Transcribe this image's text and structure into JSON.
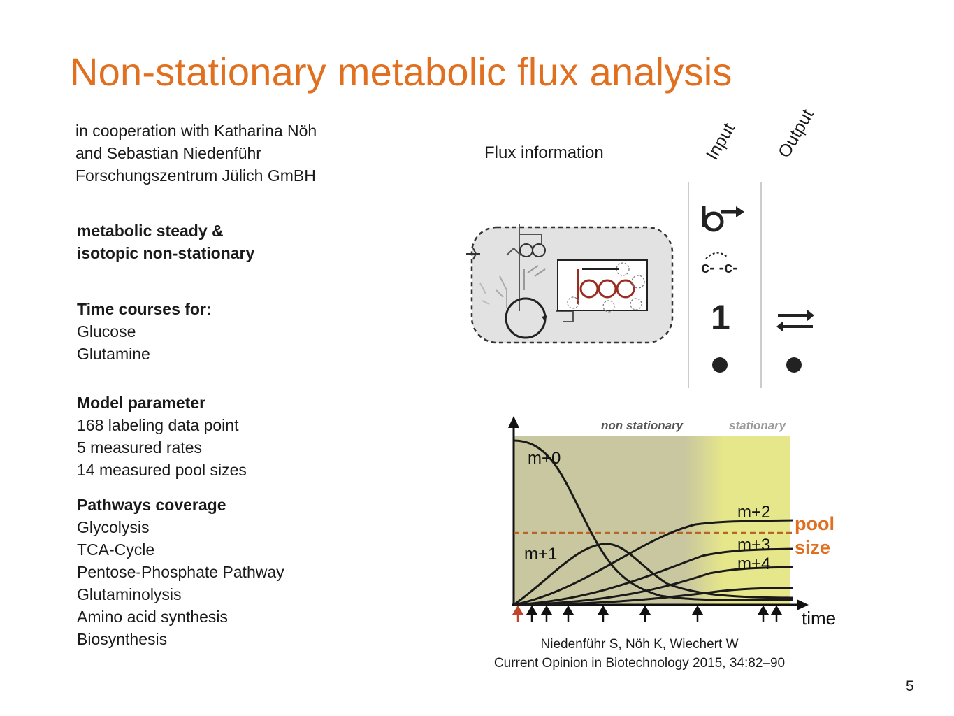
{
  "slide": {
    "title": "Non-stationary metabolic flux analysis",
    "page_number": "5"
  },
  "cooperation": {
    "lines": [
      "in cooperation with Katharina Nöh",
      "and Sebastian Niedenführ",
      "Forschungszentrum Jülich GmBH"
    ]
  },
  "steady_state": {
    "lines": [
      "metabolic steady &",
      "isotopic non-stationary"
    ]
  },
  "time_courses": {
    "heading": "Time courses for:",
    "items": [
      "Glucose",
      "Glutamine"
    ]
  },
  "model_parameter": {
    "heading": "Model parameter",
    "items": [
      "168 labeling data point",
      "5 measured rates",
      "14 measured pool sizes"
    ]
  },
  "pathways": {
    "heading": "Pathways coverage",
    "items": [
      "Glycolysis",
      "TCA-Cycle",
      "Pentose-Phosphate Pathway",
      "Glutaminolysis",
      "Amino acid synthesis",
      "Biosynthesis"
    ]
  },
  "flux_diagram": {
    "label": "Flux information",
    "column_input": "Input",
    "column_output": "Output",
    "carbon_label": "c- -c-",
    "number_symbol": "1",
    "accent_color": "#9b2d20"
  },
  "figure": {
    "region_nonstationary": "non stationary",
    "region_stationary": "stationary",
    "xlabel": "time",
    "pool_label_1": "pool",
    "pool_label_2": "size",
    "curves": [
      "m+0",
      "m+1",
      "m+2",
      "m+3",
      "m+4"
    ],
    "colors": {
      "background": "#c9c79f",
      "stationary": "#e6e68a",
      "pool_line": "#b5652a",
      "pool_text": "#e07020"
    }
  },
  "citation": {
    "line1": "Niedenführ S, Nöh K, Wiechert W",
    "line2": "Current Opinion in Biotechnology 2015, 34:82–90"
  }
}
